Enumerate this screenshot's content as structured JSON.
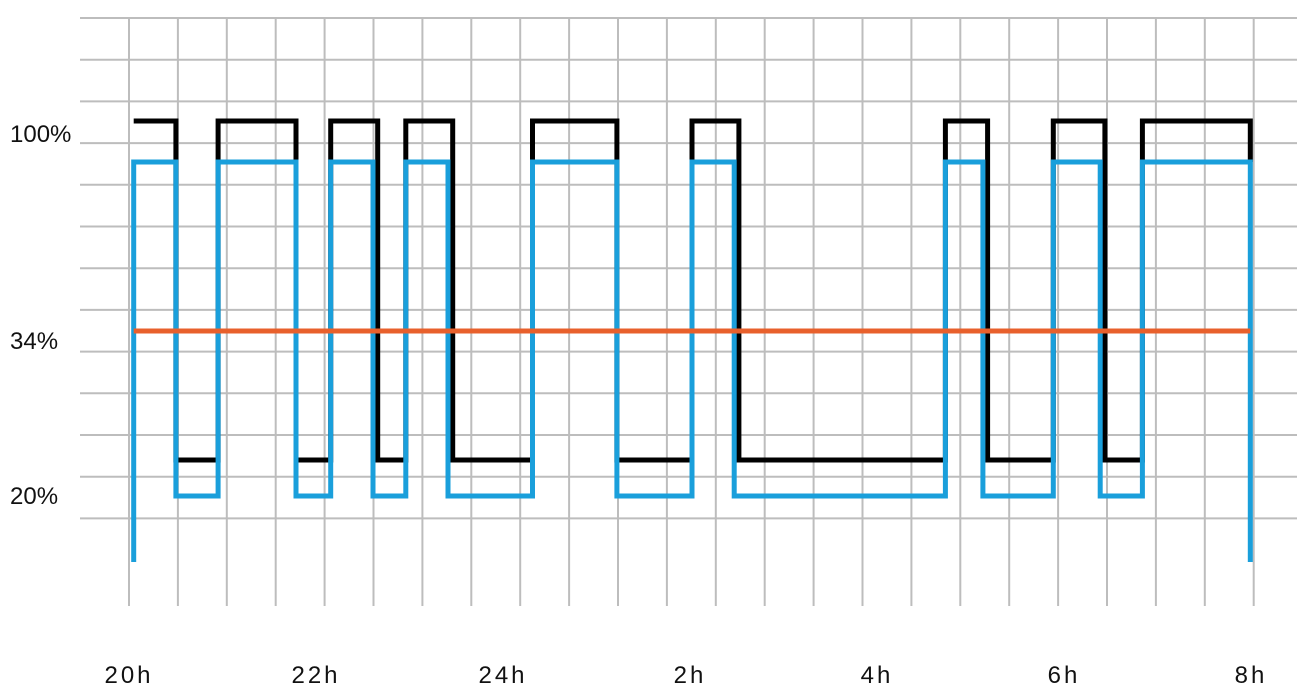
{
  "chart_data": {
    "type": "line",
    "title": "",
    "xlabel": "",
    "ylabel": "",
    "grid": true,
    "x_tick_labels": [
      "20h",
      "22h",
      "24h",
      "2h",
      "4h",
      "6h",
      "8h"
    ],
    "y_tick_labels": [
      "100%",
      "34%",
      "20%"
    ],
    "series": [
      {
        "color": "#000000",
        "points": [
          [
            20.05,
            100
          ],
          [
            20.5,
            100
          ],
          [
            20.5,
            6
          ],
          [
            20.95,
            6
          ],
          [
            20.95,
            100
          ],
          [
            21.78,
            100
          ],
          [
            21.78,
            6
          ],
          [
            22.15,
            6
          ],
          [
            22.15,
            100
          ],
          [
            22.65,
            100
          ],
          [
            22.65,
            6
          ],
          [
            22.95,
            6
          ],
          [
            22.95,
            100
          ],
          [
            23.45,
            100
          ],
          [
            23.45,
            6
          ],
          [
            24.3,
            6
          ],
          [
            24.3,
            100
          ],
          [
            25.2,
            100
          ],
          [
            25.2,
            6
          ],
          [
            26.0,
            6
          ],
          [
            26.0,
            100
          ],
          [
            26.5,
            100
          ],
          [
            26.5,
            6
          ],
          [
            28.7,
            6
          ],
          [
            28.7,
            100
          ],
          [
            29.15,
            100
          ],
          [
            29.15,
            6
          ],
          [
            29.85,
            6
          ],
          [
            29.85,
            100
          ],
          [
            30.4,
            100
          ],
          [
            30.4,
            6
          ],
          [
            30.8,
            6
          ],
          [
            30.8,
            100
          ],
          [
            31.95,
            100
          ],
          [
            31.95,
            90
          ]
        ]
      },
      {
        "color": "#1a9fdb",
        "points": [
          [
            20.05,
            -30
          ],
          [
            20.05,
            90
          ],
          [
            20.5,
            90
          ],
          [
            20.5,
            -3
          ],
          [
            20.95,
            -3
          ],
          [
            20.95,
            90
          ],
          [
            21.78,
            90
          ],
          [
            21.78,
            -3
          ],
          [
            22.15,
            -3
          ],
          [
            22.15,
            90
          ],
          [
            22.6,
            90
          ],
          [
            22.6,
            -3
          ],
          [
            22.95,
            -3
          ],
          [
            22.95,
            90
          ],
          [
            23.4,
            90
          ],
          [
            23.4,
            -3
          ],
          [
            24.3,
            -3
          ],
          [
            24.3,
            90
          ],
          [
            25.2,
            90
          ],
          [
            25.2,
            -3
          ],
          [
            26.0,
            -3
          ],
          [
            26.0,
            90
          ],
          [
            26.45,
            90
          ],
          [
            26.45,
            -3
          ],
          [
            28.7,
            -3
          ],
          [
            28.7,
            90
          ],
          [
            29.1,
            90
          ],
          [
            29.1,
            -3
          ],
          [
            29.85,
            -3
          ],
          [
            29.85,
            90
          ],
          [
            30.35,
            90
          ],
          [
            30.35,
            -3
          ],
          [
            30.8,
            -3
          ],
          [
            30.8,
            90
          ],
          [
            31.95,
            90
          ],
          [
            31.95,
            -30
          ]
        ]
      },
      {
        "color": "#e8602c",
        "points": [
          [
            20.05,
            46
          ],
          [
            31.95,
            46
          ]
        ]
      }
    ]
  },
  "colors": {
    "grid": "#bdbdbd",
    "text": "#111111",
    "series_black": "#000000",
    "series_blue": "#1a9fdb",
    "series_orange": "#e8602c"
  }
}
